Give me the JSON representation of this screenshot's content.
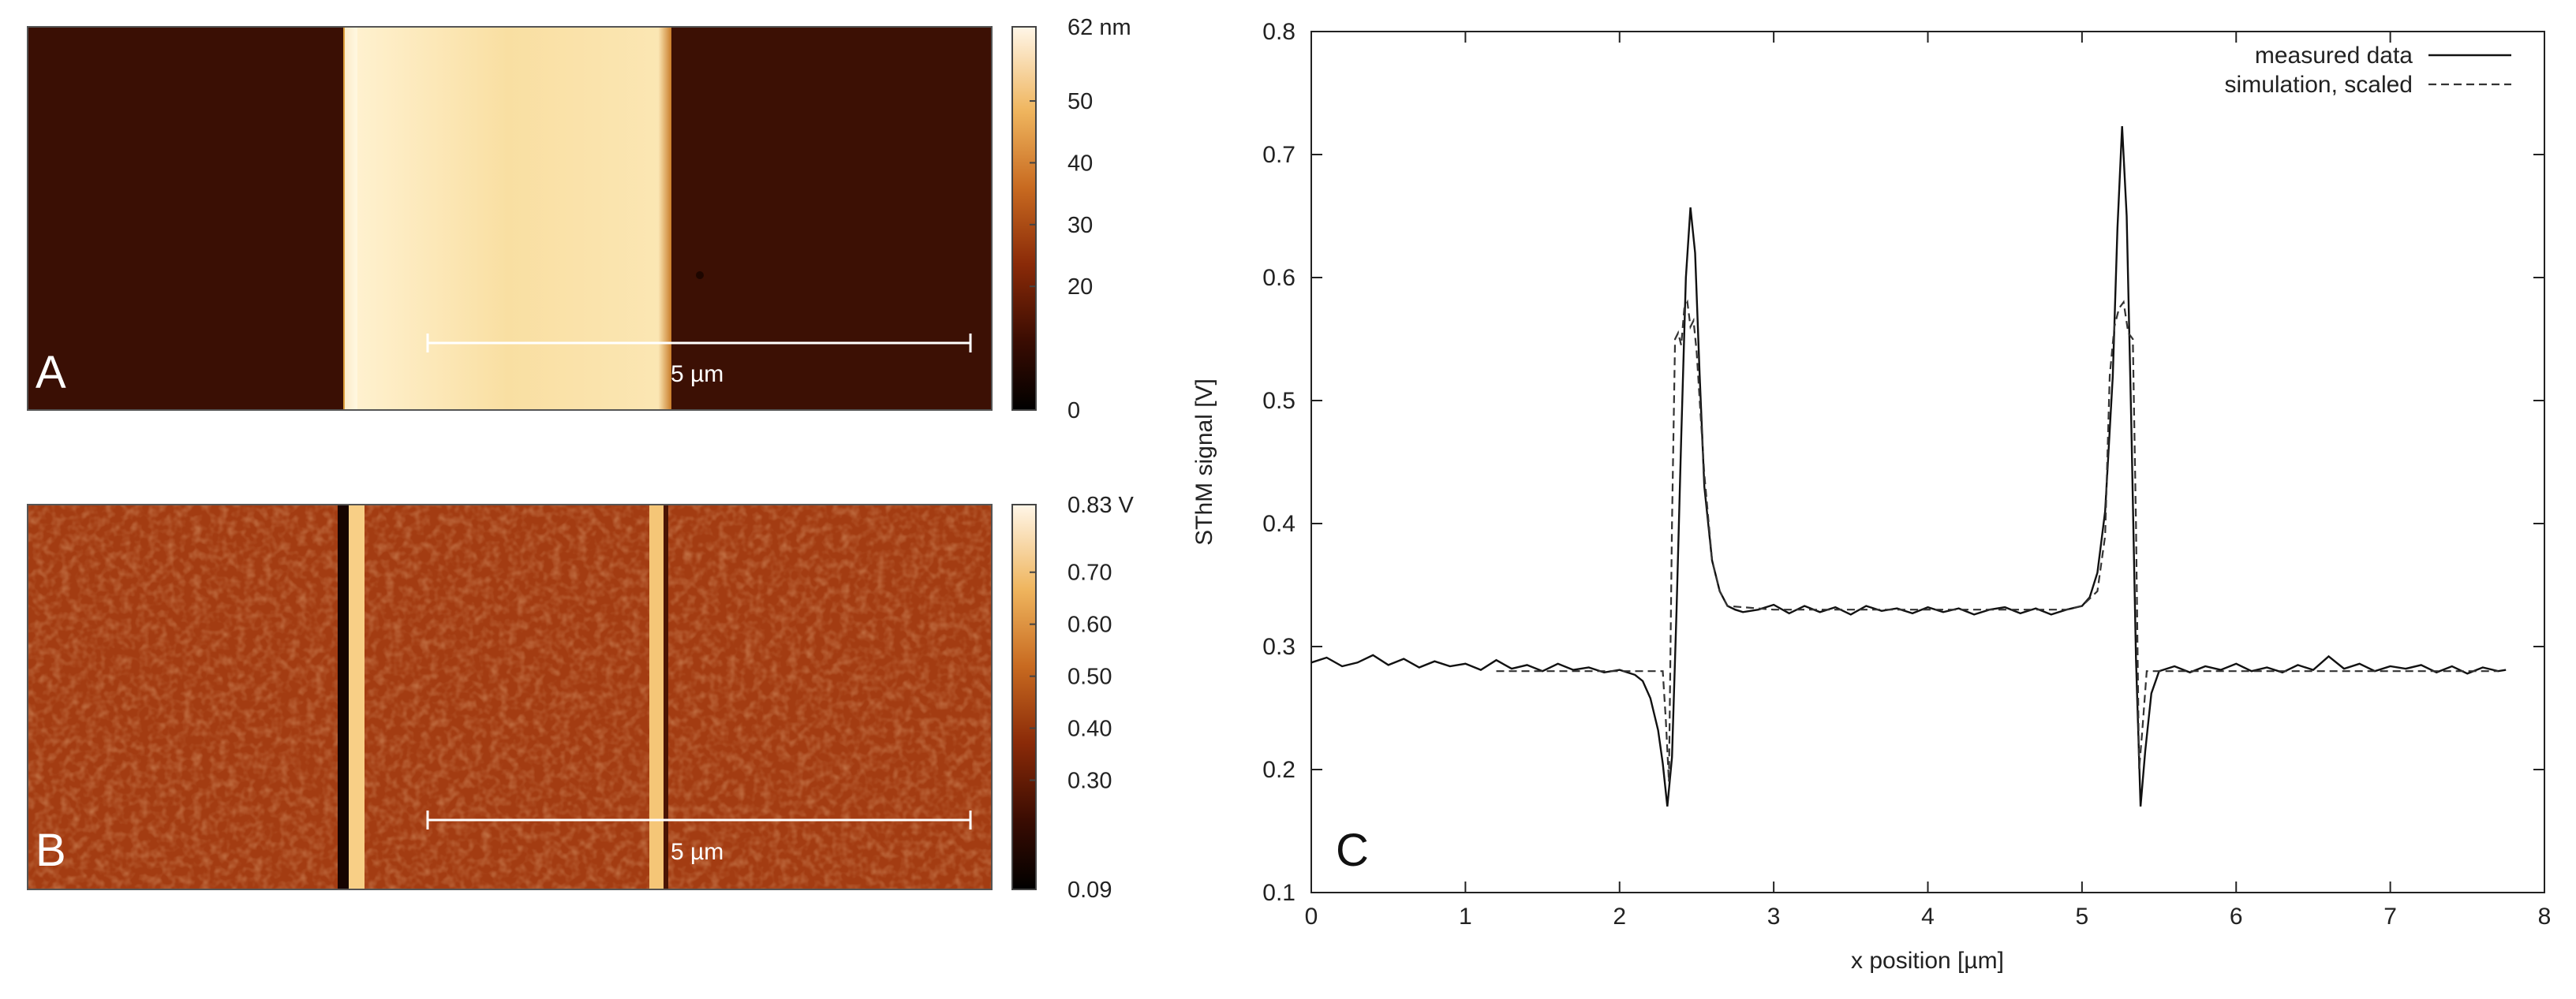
{
  "panels": {
    "A": {
      "letter": "A",
      "scalebar_label": "5 µm",
      "colorbar": {
        "ticks": [
          "62 nm",
          "50",
          "40",
          "30",
          "20",
          "0"
        ],
        "tick_values": [
          62,
          50,
          40,
          30,
          20,
          0
        ],
        "range": [
          0,
          62
        ]
      }
    },
    "B": {
      "letter": "B",
      "scalebar_label": "5 µm",
      "colorbar": {
        "ticks": [
          "0.83 V",
          "0.70",
          "0.60",
          "0.50",
          "0.40",
          "0.30",
          "0.09"
        ],
        "tick_values": [
          0.83,
          0.7,
          0.6,
          0.5,
          0.4,
          0.3,
          0.09
        ],
        "range": [
          0.09,
          0.83
        ]
      }
    }
  },
  "chart_data": {
    "type": "line",
    "panel_letter": "C",
    "title": "",
    "xlabel": "x position [µm]",
    "ylabel": "SThM signal [V]",
    "xlim": [
      0,
      8
    ],
    "ylim": [
      0.1,
      0.8
    ],
    "xticks": [
      0,
      1,
      2,
      3,
      4,
      5,
      6,
      7,
      8
    ],
    "xtick_labels": [
      "0",
      "1",
      "2",
      "3",
      "4",
      "5",
      "6",
      "7",
      "8"
    ],
    "yticks": [
      0.1,
      0.2,
      0.3,
      0.4,
      0.5,
      0.6,
      0.7,
      0.8
    ],
    "ytick_labels": [
      "0.1",
      "0.2",
      "0.3",
      "0.4",
      "0.5",
      "0.6",
      "0.7",
      "0.8"
    ],
    "legend_position": "top-right",
    "series": [
      {
        "name": "measured data",
        "style": "solid",
        "x": [
          0.0,
          0.1,
          0.2,
          0.3,
          0.4,
          0.5,
          0.6,
          0.7,
          0.8,
          0.9,
          1.0,
          1.1,
          1.2,
          1.3,
          1.4,
          1.5,
          1.6,
          1.7,
          1.8,
          1.9,
          2.0,
          2.1,
          2.15,
          2.2,
          2.25,
          2.28,
          2.31,
          2.34,
          2.37,
          2.4,
          2.43,
          2.46,
          2.49,
          2.52,
          2.55,
          2.6,
          2.65,
          2.7,
          2.75,
          2.8,
          2.9,
          3.0,
          3.1,
          3.2,
          3.3,
          3.4,
          3.5,
          3.6,
          3.7,
          3.8,
          3.9,
          4.0,
          4.1,
          4.2,
          4.3,
          4.4,
          4.5,
          4.6,
          4.7,
          4.8,
          4.9,
          5.0,
          5.05,
          5.1,
          5.15,
          5.2,
          5.23,
          5.26,
          5.29,
          5.32,
          5.35,
          5.38,
          5.41,
          5.45,
          5.5,
          5.6,
          5.7,
          5.8,
          5.9,
          6.0,
          6.1,
          6.2,
          6.3,
          6.4,
          6.5,
          6.6,
          6.7,
          6.8,
          6.9,
          7.0,
          7.1,
          7.2,
          7.3,
          7.4,
          7.5,
          7.6,
          7.7,
          7.75
        ],
        "values": [
          0.287,
          0.291,
          0.284,
          0.287,
          0.293,
          0.285,
          0.29,
          0.283,
          0.288,
          0.284,
          0.286,
          0.281,
          0.289,
          0.282,
          0.285,
          0.28,
          0.286,
          0.281,
          0.283,
          0.279,
          0.281,
          0.277,
          0.272,
          0.258,
          0.232,
          0.205,
          0.17,
          0.21,
          0.33,
          0.47,
          0.6,
          0.657,
          0.62,
          0.52,
          0.43,
          0.37,
          0.345,
          0.333,
          0.33,
          0.328,
          0.33,
          0.334,
          0.327,
          0.333,
          0.328,
          0.332,
          0.326,
          0.333,
          0.329,
          0.331,
          0.327,
          0.332,
          0.328,
          0.331,
          0.326,
          0.33,
          0.332,
          0.327,
          0.331,
          0.326,
          0.33,
          0.333,
          0.34,
          0.36,
          0.41,
          0.52,
          0.64,
          0.723,
          0.65,
          0.48,
          0.29,
          0.17,
          0.215,
          0.262,
          0.28,
          0.284,
          0.279,
          0.284,
          0.281,
          0.286,
          0.28,
          0.283,
          0.279,
          0.285,
          0.281,
          0.292,
          0.282,
          0.286,
          0.28,
          0.284,
          0.282,
          0.285,
          0.279,
          0.284,
          0.278,
          0.283,
          0.28,
          0.281
        ]
      },
      {
        "name": "simulation, scaled",
        "style": "dashed",
        "x": [
          1.2,
          2.28,
          2.3,
          2.32,
          2.34,
          2.36,
          2.38,
          2.4,
          2.42,
          2.44,
          2.46,
          2.48,
          2.5,
          2.55,
          2.6,
          2.65,
          2.7,
          3.0,
          4.0,
          4.5,
          4.9,
          5.0,
          5.1,
          5.15,
          5.18,
          5.21,
          5.24,
          5.27,
          5.3,
          5.33,
          5.35,
          5.37,
          5.39,
          5.42,
          5.5,
          6.5,
          7.7
        ],
        "values": [
          0.28,
          0.28,
          0.24,
          0.19,
          0.4,
          0.55,
          0.555,
          0.545,
          0.575,
          0.58,
          0.56,
          0.565,
          0.54,
          0.44,
          0.37,
          0.345,
          0.333,
          0.33,
          0.33,
          0.33,
          0.33,
          0.333,
          0.345,
          0.39,
          0.52,
          0.56,
          0.575,
          0.58,
          0.555,
          0.55,
          0.4,
          0.2,
          0.23,
          0.28,
          0.28,
          0.28,
          0.28
        ]
      }
    ]
  }
}
